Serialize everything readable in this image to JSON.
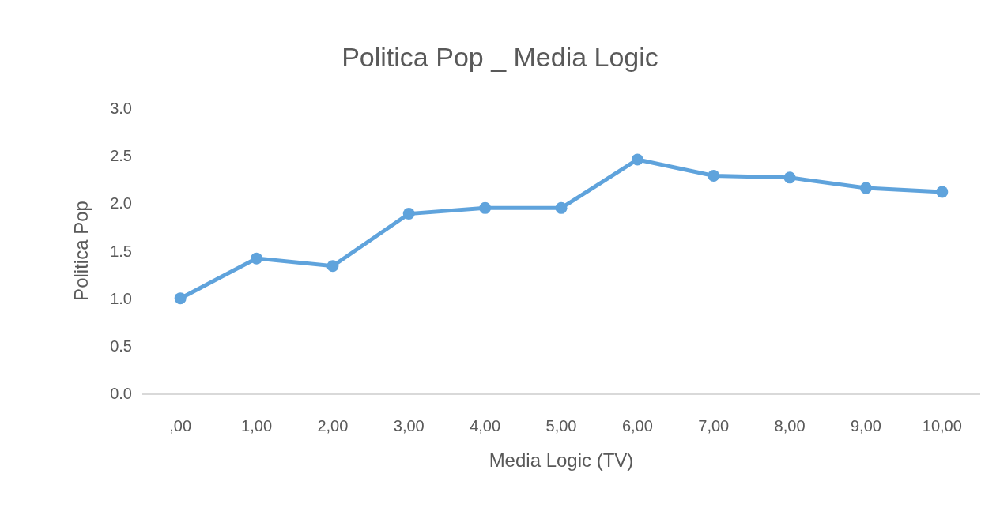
{
  "chart_data": {
    "type": "line",
    "title": "Politica Pop _ Media Logic",
    "xlabel": "Media Logic (TV)",
    "ylabel": "Politica Pop",
    "categories": [
      ",00",
      "1,00",
      "2,00",
      "3,00",
      "4,00",
      "5,00",
      "6,00",
      "7,00",
      "8,00",
      "9,00",
      "10,00"
    ],
    "series": [
      {
        "color": "#5fa3dc",
        "values": [
          1.0,
          1.42,
          1.34,
          1.89,
          1.95,
          1.95,
          2.46,
          2.29,
          2.27,
          2.16,
          2.12
        ]
      }
    ],
    "ylim": [
      0,
      3
    ],
    "yticks": [
      {
        "value": 0,
        "label": "0.0"
      },
      {
        "value": 0.5,
        "label": "0.5"
      },
      {
        "value": 1,
        "label": "1.0"
      },
      {
        "value": 1.5,
        "label": "1.5"
      },
      {
        "value": 2,
        "label": "2.0"
      },
      {
        "value": 2.5,
        "label": "2.5"
      },
      {
        "value": 3,
        "label": "3.0"
      }
    ],
    "grid": false,
    "marker": "circle",
    "line_style": "solid"
  }
}
